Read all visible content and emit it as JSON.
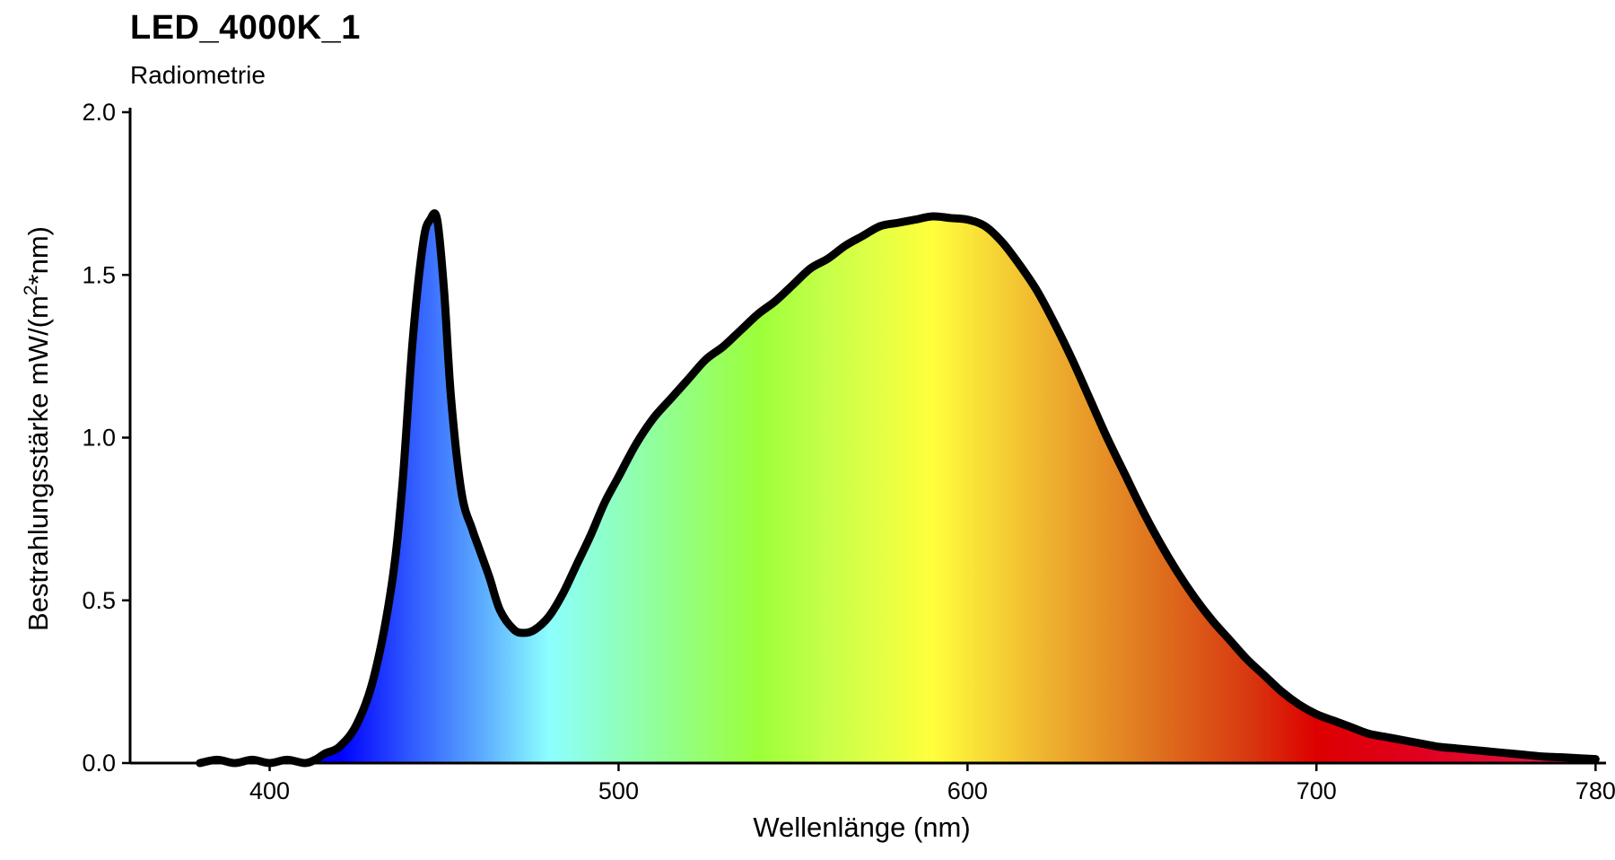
{
  "chart_data": {
    "type": "area",
    "title": "LED_4000K_1",
    "subtitle": "Radiometrie",
    "xlabel": "Wellenlänge (nm)",
    "ylabel_main": "Bestrahlungsstärke  mW/(m",
    "ylabel_sup": "2",
    "ylabel_tail": "*nm)",
    "xlim": [
      360,
      783
    ],
    "ylim": [
      0,
      2.0
    ],
    "x_ticks": [
      400,
      500,
      600,
      700,
      780
    ],
    "x_tick_labels": [
      "400",
      "500",
      "600",
      "700",
      "780"
    ],
    "y_ticks": [
      0.0,
      0.5,
      1.0,
      1.5,
      2.0
    ],
    "y_tick_labels": [
      "0.0",
      "0.5",
      "1.0",
      "1.5",
      "2.0"
    ],
    "grid": false,
    "fill": "visible spectrum gradient",
    "line_color": "#000000",
    "gradient_stops": [
      {
        "nm": 380,
        "color": "#0000ff"
      },
      {
        "nm": 420,
        "color": "#0000ff"
      },
      {
        "nm": 440,
        "color": "#2f57ff"
      },
      {
        "nm": 460,
        "color": "#5aa8ff"
      },
      {
        "nm": 480,
        "color": "#8cffff"
      },
      {
        "nm": 510,
        "color": "#90ff9c"
      },
      {
        "nm": 540,
        "color": "#9cff3a"
      },
      {
        "nm": 560,
        "color": "#c8ff4a"
      },
      {
        "nm": 590,
        "color": "#ffff3c"
      },
      {
        "nm": 620,
        "color": "#f0b830"
      },
      {
        "nm": 650,
        "color": "#e07a20"
      },
      {
        "nm": 680,
        "color": "#d83a10"
      },
      {
        "nm": 700,
        "color": "#dd0000"
      },
      {
        "nm": 730,
        "color": "#e00020"
      },
      {
        "nm": 780,
        "color": "#e0204a"
      }
    ],
    "series": [
      {
        "x": [
          380,
          385,
          390,
          395,
          400,
          405,
          410,
          413,
          416,
          420,
          425,
          430,
          435,
          438,
          441,
          444,
          446,
          448,
          450,
          452,
          455,
          458,
          460,
          463,
          466,
          470,
          473,
          476,
          480,
          484,
          488,
          492,
          496,
          500,
          505,
          510,
          515,
          520,
          525,
          530,
          535,
          540,
          545,
          550,
          555,
          560,
          565,
          570,
          575,
          580,
          585,
          590,
          595,
          600,
          605,
          610,
          615,
          620,
          625,
          630,
          635,
          640,
          645,
          650,
          655,
          660,
          665,
          670,
          675,
          680,
          685,
          690,
          695,
          700,
          705,
          710,
          715,
          720,
          725,
          730,
          735,
          740,
          745,
          750,
          755,
          760,
          765,
          770,
          775,
          780
        ],
        "y": [
          0.0,
          0.01,
          0.0,
          0.01,
          0.0,
          0.01,
          0.0,
          0.01,
          0.03,
          0.05,
          0.12,
          0.27,
          0.55,
          0.85,
          1.3,
          1.6,
          1.67,
          1.67,
          1.45,
          1.12,
          0.83,
          0.72,
          0.66,
          0.57,
          0.47,
          0.41,
          0.4,
          0.41,
          0.45,
          0.52,
          0.61,
          0.7,
          0.8,
          0.88,
          0.98,
          1.06,
          1.12,
          1.18,
          1.24,
          1.28,
          1.33,
          1.38,
          1.42,
          1.47,
          1.52,
          1.55,
          1.59,
          1.62,
          1.65,
          1.66,
          1.67,
          1.68,
          1.675,
          1.67,
          1.65,
          1.6,
          1.53,
          1.45,
          1.35,
          1.24,
          1.12,
          1.0,
          0.89,
          0.78,
          0.68,
          0.59,
          0.51,
          0.44,
          0.38,
          0.32,
          0.27,
          0.22,
          0.18,
          0.15,
          0.13,
          0.11,
          0.09,
          0.08,
          0.07,
          0.06,
          0.05,
          0.045,
          0.04,
          0.035,
          0.03,
          0.025,
          0.02,
          0.018,
          0.015,
          0.012
        ]
      }
    ]
  }
}
